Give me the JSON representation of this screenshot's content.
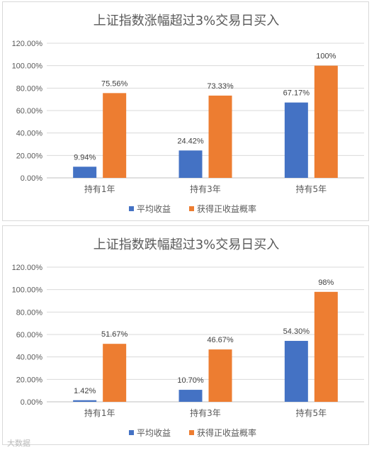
{
  "chart_data": [
    {
      "type": "bar",
      "title": "上证指数涨幅超过3%交易日买入",
      "categories": [
        "持有1年",
        "持有3年",
        "持有5年"
      ],
      "series": [
        {
          "name": "平均收益",
          "values": [
            9.94,
            24.42,
            67.17
          ],
          "labels": [
            "9.94%",
            "24.42%",
            "67.17%"
          ],
          "color": "#4472C4"
        },
        {
          "name": "获得正收益概率",
          "values": [
            75.56,
            73.33,
            100
          ],
          "labels": [
            "75.56%",
            "73.33%",
            "100%"
          ],
          "color": "#ED7D31"
        }
      ],
      "yticks": [
        "0.00%",
        "20.00%",
        "40.00%",
        "60.00%",
        "80.00%",
        "100.00%",
        "120.00%"
      ],
      "ylim": [
        0,
        120
      ],
      "legend": "bottom",
      "grid": true
    },
    {
      "type": "bar",
      "title": "上证指数跌幅超过3%交易日买入",
      "categories": [
        "持有1年",
        "持有3年",
        "持有5年"
      ],
      "series": [
        {
          "name": "平均收益",
          "values": [
            1.42,
            10.7,
            54.3
          ],
          "labels": [
            "1.42%",
            "10.70%",
            "54.30%"
          ],
          "color": "#4472C4"
        },
        {
          "name": "获得正收益概率",
          "values": [
            51.67,
            46.67,
            98
          ],
          "labels": [
            "51.67%",
            "46.67%",
            "98%"
          ],
          "color": "#ED7D31"
        }
      ],
      "yticks": [
        "0.00%",
        "20.00%",
        "40.00%",
        "60.00%",
        "80.00%",
        "100.00%",
        "120.00%"
      ],
      "ylim": [
        0,
        120
      ],
      "legend": "bottom",
      "grid": true
    }
  ],
  "watermark": "大数据"
}
